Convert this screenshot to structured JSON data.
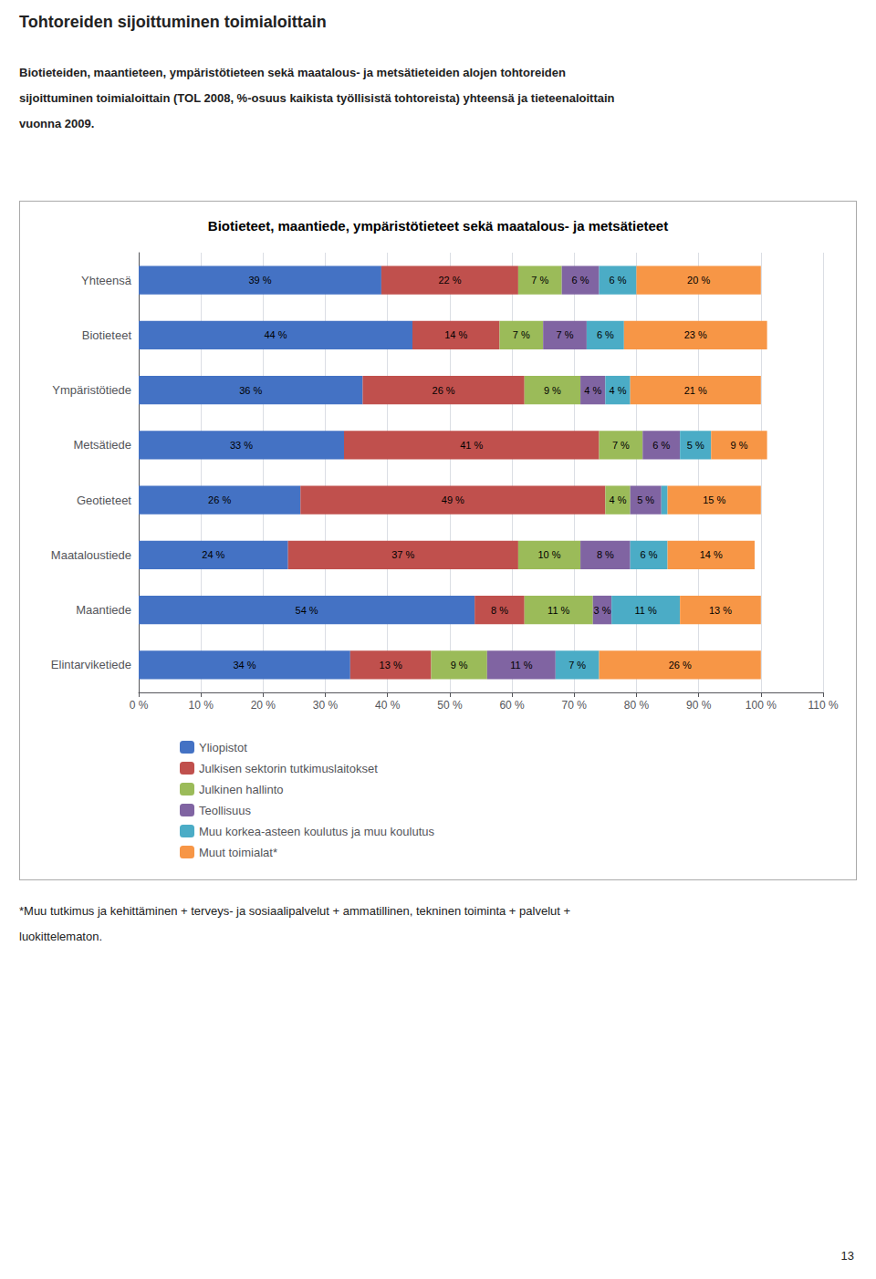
{
  "chart_data": {
    "type": "bar",
    "orientation": "horizontal",
    "stacked": true,
    "title": "Biotieteet, maantiede, ympäristötieteet sekä maatalous- ja metsätieteet",
    "annotations": [
      "Tohtoreiden sijoittuminen toimialoittain",
      "Biotieteiden, maantieteen, ympäristötieteen sekä maatalous- ja metsätieteiden alojen tohtoreiden",
      "sijoittuminen toimialoittain (TOL 2008, %-osuus kaikista työllisistä tohtoreista) yhteensä ja tieteenaloittain",
      "vuonna 2009.",
      "*Muu tutkimus ja kehittäminen + terveys- ja sosiaalipalvelut + ammatillinen, tekninen toiminta + palvelut +",
      "luokittelematon.",
      "13"
    ],
    "categories": [
      "Yhteensä",
      "Biotieteet",
      "Ympäristötiede",
      "Metsätiede",
      "Geotieteet",
      "Maataloustiede",
      "Maantiede",
      "Elintarviketiede"
    ],
    "series": [
      {
        "name": "Yliopistot",
        "color": "#4472C4",
        "values": [
          39,
          44,
          36,
          33,
          26,
          24,
          54,
          34
        ],
        "value_labels": [
          "39 %",
          "44 %",
          "36 %",
          "33 %",
          "26 %",
          "24 %",
          "54 %",
          "34 %"
        ]
      },
      {
        "name": "Julkisen sektorin tutkimuslaitokset",
        "color": "#C0504D",
        "values": [
          22,
          14,
          26,
          41,
          49,
          37,
          8,
          13
        ],
        "value_labels": [
          "22 %",
          "14 %",
          "26 %",
          "41 %",
          "49 %",
          "37 %",
          "8 %",
          "13 %"
        ]
      },
      {
        "name": "Julkinen hallinto",
        "color": "#9BBB59",
        "values": [
          7,
          7,
          9,
          7,
          4,
          10,
          11,
          9
        ],
        "value_labels": [
          "7 %",
          "7 %",
          "9 %",
          "7 %",
          "4 %",
          "10 %",
          "11 %",
          "9 %"
        ]
      },
      {
        "name": "Teollisuus",
        "color": "#8064A2",
        "values": [
          6,
          7,
          4,
          6,
          5,
          8,
          3,
          11
        ],
        "value_labels": [
          "6 %",
          "7 %",
          "4 %",
          "6 %",
          "5 %",
          "8 %",
          "3 %",
          "11 %"
        ]
      },
      {
        "name": "Muu korkea-asteen koulutus ja muu koulutus",
        "color": "#4BACC6",
        "values": [
          6,
          6,
          4,
          5,
          1,
          6,
          11,
          7
        ],
        "value_labels": [
          "6 %",
          "6 %",
          "4 %",
          "5 %",
          null,
          "6 %",
          "11 %",
          "7 %"
        ]
      },
      {
        "name": "Muut toimialat*",
        "color": "#F79646",
        "values": [
          20,
          23,
          21,
          9,
          15,
          14,
          13,
          26
        ],
        "value_labels": [
          "20 %",
          "23 %",
          "21 %",
          "9 %",
          "15 %",
          "14 %",
          "13 %",
          "26 %"
        ]
      }
    ],
    "xlim": [
      0,
      110
    ],
    "xticks": [
      {
        "value": 0,
        "label": "0 %"
      },
      {
        "value": 10,
        "label": "10 %"
      },
      {
        "value": 20,
        "label": "20 %"
      },
      {
        "value": 30,
        "label": "30 %"
      },
      {
        "value": 40,
        "label": "40 %"
      },
      {
        "value": 50,
        "label": "50 %"
      },
      {
        "value": 60,
        "label": "60 %"
      },
      {
        "value": 70,
        "label": "70 %"
      },
      {
        "value": 80,
        "label": "80 %"
      },
      {
        "value": 90,
        "label": "90 %"
      },
      {
        "value": 100,
        "label": "100 %"
      },
      {
        "value": 110,
        "label": "110 %"
      }
    ],
    "grid": true,
    "legend": "bottom",
    "data_labels": true
  }
}
